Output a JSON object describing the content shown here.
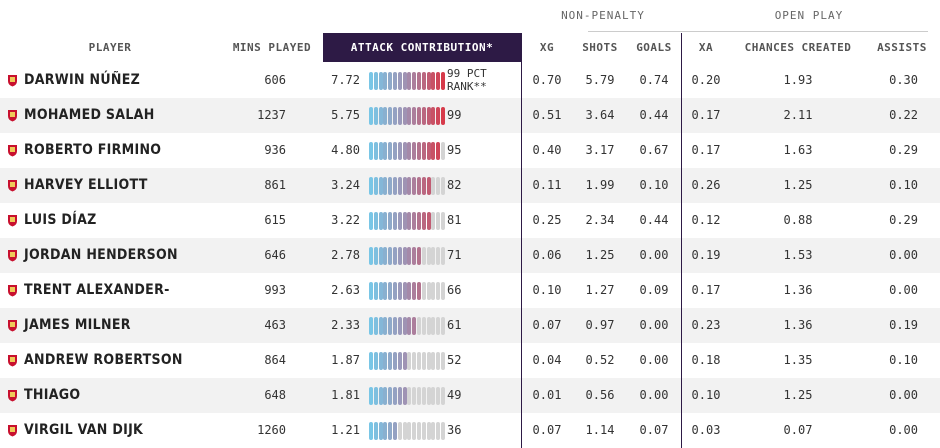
{
  "group_headers": {
    "non_penalty": "NON-PENALTY",
    "open_play": "OPEN PLAY"
  },
  "columns": {
    "player": "PLAYER",
    "mins": "MINS PLAYED",
    "attack": "ATTACK CONTRIBUTION*",
    "xg": "XG",
    "shots": "SHOTS",
    "goals": "GOALS",
    "xa": "XA",
    "chances": "CHANCES CREATED",
    "assists": "ASSISTS"
  },
  "first_rank_label": {
    "line1": "99 PCT",
    "line2": "RANK**"
  },
  "colors": {
    "accent": "#2d1a45",
    "bar_low": "#79c6e6",
    "bar_high": "#d63a4a",
    "bar_empty": "#d4d4d4"
  },
  "chart_data": {
    "type": "table",
    "bar_segments": 16,
    "rows": [
      {
        "player": "DARWIN NÚÑEZ",
        "mins": "606",
        "attack": "7.72",
        "rank": "99",
        "xg": "0.70",
        "shots": "5.79",
        "goals": "0.74",
        "xa": "0.20",
        "chances": "1.93",
        "assists": "0.30"
      },
      {
        "player": "MOHAMED SALAH",
        "mins": "1237",
        "attack": "5.75",
        "rank": "99",
        "xg": "0.51",
        "shots": "3.64",
        "goals": "0.44",
        "xa": "0.17",
        "chances": "2.11",
        "assists": "0.22"
      },
      {
        "player": "ROBERTO FIRMINO",
        "mins": "936",
        "attack": "4.80",
        "rank": "95",
        "xg": "0.40",
        "shots": "3.17",
        "goals": "0.67",
        "xa": "0.17",
        "chances": "1.63",
        "assists": "0.29"
      },
      {
        "player": "HARVEY ELLIOTT",
        "mins": "861",
        "attack": "3.24",
        "rank": "82",
        "xg": "0.11",
        "shots": "1.99",
        "goals": "0.10",
        "xa": "0.26",
        "chances": "1.25",
        "assists": "0.10"
      },
      {
        "player": "LUIS DÍAZ",
        "mins": "615",
        "attack": "3.22",
        "rank": "81",
        "xg": "0.25",
        "shots": "2.34",
        "goals": "0.44",
        "xa": "0.12",
        "chances": "0.88",
        "assists": "0.29"
      },
      {
        "player": "JORDAN HENDERSON",
        "mins": "646",
        "attack": "2.78",
        "rank": "71",
        "xg": "0.06",
        "shots": "1.25",
        "goals": "0.00",
        "xa": "0.19",
        "chances": "1.53",
        "assists": "0.00"
      },
      {
        "player": "TRENT ALEXANDER-ARNOLD",
        "mins": "993",
        "attack": "2.63",
        "rank": "66",
        "xg": "0.10",
        "shots": "1.27",
        "goals": "0.09",
        "xa": "0.17",
        "chances": "1.36",
        "assists": "0.00"
      },
      {
        "player": "JAMES MILNER",
        "mins": "463",
        "attack": "2.33",
        "rank": "61",
        "xg": "0.07",
        "shots": "0.97",
        "goals": "0.00",
        "xa": "0.23",
        "chances": "1.36",
        "assists": "0.19"
      },
      {
        "player": "ANDREW ROBERTSON",
        "mins": "864",
        "attack": "1.87",
        "rank": "52",
        "xg": "0.04",
        "shots": "0.52",
        "goals": "0.00",
        "xa": "0.18",
        "chances": "1.35",
        "assists": "0.10"
      },
      {
        "player": "THIAGO",
        "mins": "648",
        "attack": "1.81",
        "rank": "49",
        "xg": "0.01",
        "shots": "0.56",
        "goals": "0.00",
        "xa": "0.10",
        "chances": "1.25",
        "assists": "0.00"
      },
      {
        "player": "VIRGIL VAN DIJK",
        "mins": "1260",
        "attack": "1.21",
        "rank": "36",
        "xg": "0.07",
        "shots": "1.14",
        "goals": "0.07",
        "xa": "0.03",
        "chances": "0.07",
        "assists": "0.00"
      }
    ]
  }
}
